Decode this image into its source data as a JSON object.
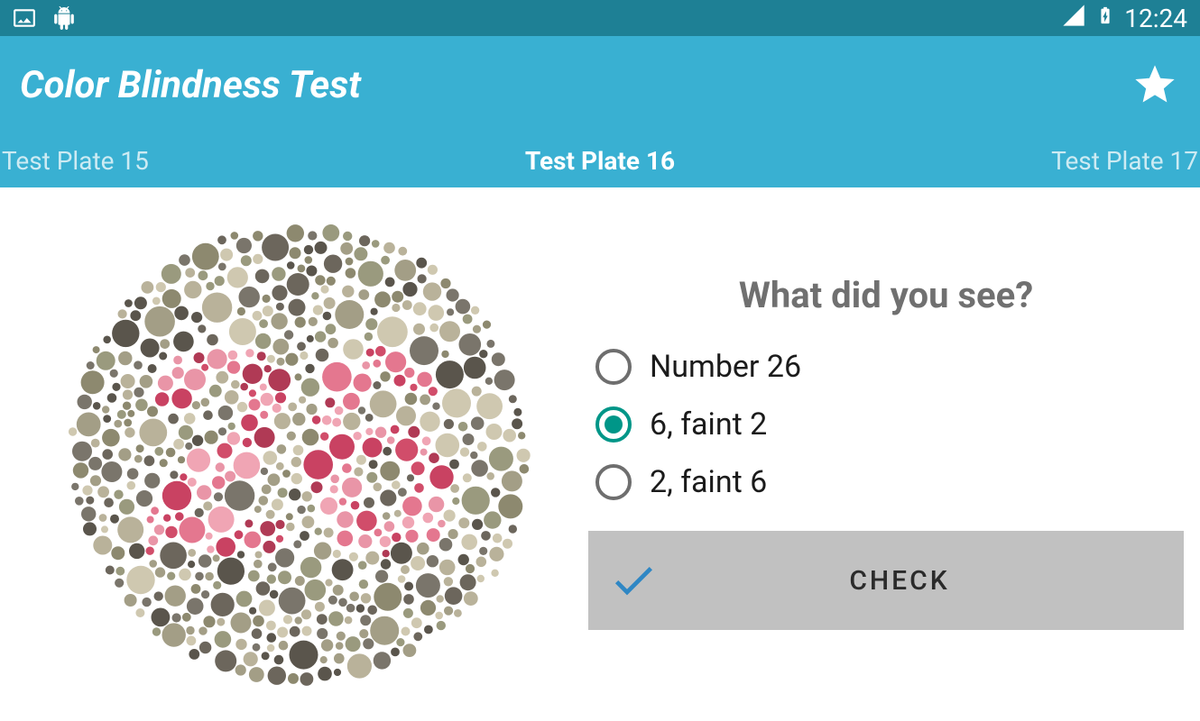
{
  "status": {
    "time": "12:24"
  },
  "appBar": {
    "title": "Color Blindness Test"
  },
  "tabs": {
    "left": "Test Plate 15",
    "center": "Test Plate 16",
    "right": "Test Plate 17"
  },
  "quiz": {
    "question": "What did you see?",
    "options": [
      {
        "label": "Number 26",
        "selected": false
      },
      {
        "label": "6, faint 2",
        "selected": true
      },
      {
        "label": "2, faint 6",
        "selected": false
      }
    ],
    "check_label": "CHECK"
  },
  "colors": {
    "statusBar": "#1e8095",
    "appBar": "#39b0d2",
    "radioSelected": "#009688",
    "checkBtnBg": "#c1c1c1",
    "checkIcon": "#2f87c4"
  },
  "ishiharaPlate": {
    "numeral": "26",
    "bgDotColors": [
      "#9a9a7e",
      "#b9b29a",
      "#7a756b",
      "#5a554c",
      "#cfc8b0",
      "#8d896f",
      "#a39e86",
      "#6c665c"
    ],
    "fgDotColors": [
      "#e4778f",
      "#d14d6a",
      "#f0a5b4",
      "#c94262",
      "#e995a7",
      "#b03a55"
    ],
    "diameter": 520,
    "dotRadiusRange": [
      4,
      17
    ],
    "approxDotCount": 950
  }
}
